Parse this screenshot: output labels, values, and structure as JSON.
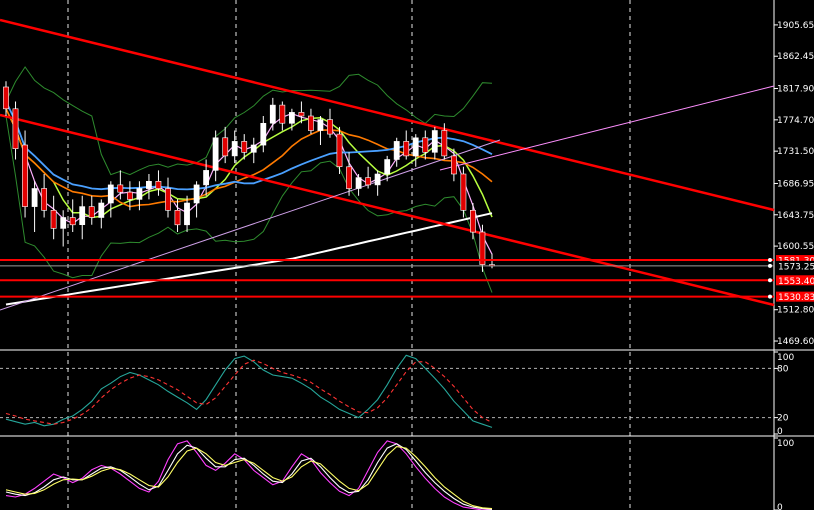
{
  "chart_data": [
    {
      "type": "candlestick",
      "panel": "price",
      "title": "",
      "xlabel": "",
      "ylabel": "",
      "ylim": [
        1460,
        1940
      ],
      "y_ticks": [
        "1905.65",
        "1862.45",
        "1817.90",
        "1774.70",
        "1731.50",
        "1686.95",
        "1643.75",
        "1600.55",
        "1512.80",
        "1469.60"
      ],
      "price_tags": [
        {
          "label": "1581.30",
          "value": 1581.3,
          "style": "red-line"
        },
        {
          "label": "1573.25",
          "value": 1573.25,
          "style": "current"
        },
        {
          "label": "1553.40",
          "value": 1553.4,
          "style": "red-line"
        },
        {
          "label": "1530.83",
          "value": 1530.83,
          "style": "red-line"
        }
      ],
      "colors": {
        "bull": "#ffffff",
        "bear": "#e00000",
        "wick": "#ffffff",
        "hline": "#ff0000",
        "trend": "#ff0000",
        "grid": "#ffffff"
      },
      "candles": [
        [
          1820,
          1828,
          1780,
          1790
        ],
        [
          1790,
          1800,
          1720,
          1735
        ],
        [
          1740,
          1760,
          1640,
          1655
        ],
        [
          1655,
          1690,
          1620,
          1680
        ],
        [
          1680,
          1700,
          1640,
          1650
        ],
        [
          1650,
          1670,
          1610,
          1625
        ],
        [
          1625,
          1650,
          1600,
          1640
        ],
        [
          1640,
          1665,
          1620,
          1630
        ],
        [
          1630,
          1670,
          1610,
          1655
        ],
        [
          1655,
          1670,
          1630,
          1640
        ],
        [
          1640,
          1665,
          1625,
          1660
        ],
        [
          1660,
          1690,
          1640,
          1685
        ],
        [
          1685,
          1705,
          1665,
          1675
        ],
        [
          1675,
          1690,
          1650,
          1665
        ],
        [
          1665,
          1690,
          1650,
          1680
        ],
        [
          1680,
          1700,
          1665,
          1690
        ],
        [
          1690,
          1705,
          1670,
          1680
        ],
        [
          1680,
          1695,
          1640,
          1650
        ],
        [
          1650,
          1665,
          1620,
          1630
        ],
        [
          1630,
          1670,
          1620,
          1660
        ],
        [
          1660,
          1690,
          1640,
          1685
        ],
        [
          1685,
          1720,
          1670,
          1705
        ],
        [
          1705,
          1760,
          1690,
          1750
        ],
        [
          1750,
          1765,
          1715,
          1725
        ],
        [
          1725,
          1760,
          1715,
          1745
        ],
        [
          1745,
          1755,
          1720,
          1730
        ],
        [
          1730,
          1750,
          1715,
          1740
        ],
        [
          1740,
          1780,
          1730,
          1770
        ],
        [
          1770,
          1805,
          1760,
          1795
        ],
        [
          1795,
          1800,
          1760,
          1770
        ],
        [
          1770,
          1790,
          1760,
          1785
        ],
        [
          1785,
          1800,
          1770,
          1780
        ],
        [
          1780,
          1790,
          1755,
          1760
        ],
        [
          1760,
          1780,
          1740,
          1775
        ],
        [
          1775,
          1790,
          1750,
          1755
        ],
        [
          1755,
          1765,
          1700,
          1710
        ],
        [
          1710,
          1730,
          1670,
          1680
        ],
        [
          1680,
          1700,
          1670,
          1695
        ],
        [
          1695,
          1710,
          1680,
          1685
        ],
        [
          1685,
          1705,
          1670,
          1700
        ],
        [
          1700,
          1725,
          1690,
          1720
        ],
        [
          1720,
          1750,
          1710,
          1745
        ],
        [
          1745,
          1760,
          1720,
          1725
        ],
        [
          1725,
          1755,
          1710,
          1750
        ],
        [
          1750,
          1760,
          1720,
          1730
        ],
        [
          1730,
          1765,
          1720,
          1760
        ],
        [
          1760,
          1770,
          1720,
          1725
        ],
        [
          1725,
          1735,
          1690,
          1700
        ],
        [
          1700,
          1710,
          1640,
          1650
        ],
        [
          1650,
          1660,
          1610,
          1620
        ],
        [
          1620,
          1630,
          1565,
          1575
        ],
        [
          1575,
          1590,
          1570,
          1573.25
        ]
      ]
    },
    {
      "type": "line",
      "panel": "oscillator-1",
      "title": "",
      "ylim": [
        0,
        100
      ],
      "y_ticks": [
        "100",
        "80",
        "20",
        "0"
      ],
      "series": [
        {
          "color": "#26a69a",
          "style": "solid",
          "values": [
            18,
            15,
            12,
            14,
            10,
            12,
            18,
            22,
            30,
            40,
            55,
            62,
            70,
            75,
            72,
            66,
            60,
            52,
            45,
            38,
            30,
            42,
            60,
            78,
            92,
            95,
            88,
            78,
            72,
            70,
            68,
            62,
            55,
            45,
            38,
            30,
            25,
            20,
            30,
            42,
            60,
            80,
            96,
            92,
            80,
            68,
            55,
            40,
            28,
            16,
            12,
            8
          ]
        },
        {
          "color": "#ff3333",
          "style": "dash",
          "values": [
            25,
            22,
            18,
            16,
            14,
            12,
            14,
            18,
            24,
            32,
            44,
            54,
            62,
            68,
            72,
            70,
            66,
            60,
            54,
            46,
            38,
            36,
            44,
            58,
            72,
            85,
            90,
            86,
            80,
            75,
            72,
            68,
            63,
            55,
            48,
            40,
            33,
            27,
            26,
            32,
            44,
            60,
            76,
            88,
            88,
            80,
            70,
            58,
            44,
            30,
            20,
            14
          ]
        }
      ]
    },
    {
      "type": "line",
      "panel": "oscillator-2",
      "title": "",
      "ylim": [
        0,
        100
      ],
      "y_ticks": [
        "100",
        "0"
      ],
      "series": [
        {
          "color": "#ff40ff",
          "style": "solid",
          "values": [
            20,
            18,
            22,
            30,
            40,
            50,
            45,
            38,
            44,
            56,
            62,
            58,
            50,
            40,
            30,
            25,
            40,
            70,
            92,
            96,
            80,
            62,
            55,
            65,
            78,
            70,
            55,
            45,
            35,
            40,
            60,
            78,
            70,
            52,
            38,
            26,
            20,
            30,
            55,
            80,
            96,
            92,
            78,
            60,
            44,
            30,
            18,
            10,
            4,
            2,
            0,
            0
          ]
        },
        {
          "color": "#ffffff",
          "style": "solid",
          "values": [
            25,
            22,
            20,
            24,
            32,
            42,
            46,
            42,
            42,
            50,
            58,
            60,
            55,
            46,
            36,
            28,
            33,
            55,
            78,
            90,
            86,
            72,
            60,
            60,
            70,
            72,
            62,
            50,
            40,
            38,
            50,
            68,
            72,
            60,
            45,
            32,
            24,
            26,
            42,
            66,
            86,
            92,
            84,
            68,
            52,
            38,
            26,
            16,
            8,
            4,
            2,
            1
          ]
        },
        {
          "color": "#ffff66",
          "style": "solid",
          "values": [
            28,
            25,
            22,
            23,
            28,
            36,
            42,
            43,
            42,
            47,
            54,
            58,
            56,
            50,
            42,
            34,
            32,
            46,
            66,
            82,
            86,
            78,
            66,
            62,
            66,
            70,
            65,
            55,
            45,
            40,
            46,
            60,
            68,
            64,
            52,
            40,
            30,
            27,
            36,
            56,
            76,
            88,
            86,
            74,
            60,
            45,
            32,
            22,
            12,
            6,
            3,
            2
          ]
        }
      ]
    }
  ]
}
